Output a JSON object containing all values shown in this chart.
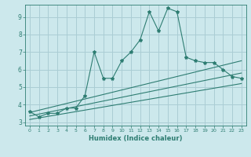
{
  "title": "",
  "xlabel": "Humidex (Indice chaleur)",
  "ylabel": "",
  "bg_color": "#cce8ec",
  "grid_color": "#aacdd4",
  "line_color": "#2e7d72",
  "xlim": [
    -0.5,
    23.5
  ],
  "ylim": [
    2.8,
    9.7
  ],
  "yticks": [
    3,
    4,
    5,
    6,
    7,
    8,
    9
  ],
  "xticks": [
    0,
    1,
    2,
    3,
    4,
    5,
    6,
    7,
    8,
    9,
    10,
    11,
    12,
    13,
    14,
    15,
    16,
    17,
    18,
    19,
    20,
    21,
    22,
    23
  ],
  "series1_x": [
    0,
    1,
    2,
    3,
    4,
    5,
    6,
    7,
    8,
    9,
    10,
    11,
    12,
    13,
    14,
    15,
    16,
    17,
    18,
    19,
    20,
    21,
    22,
    23
  ],
  "series1_y": [
    3.6,
    3.3,
    3.5,
    3.5,
    3.8,
    3.8,
    4.5,
    7.0,
    5.5,
    5.5,
    6.5,
    7.0,
    7.7,
    9.3,
    8.2,
    9.5,
    9.3,
    6.7,
    6.5,
    6.4,
    6.4,
    6.0,
    5.6,
    5.5
  ],
  "series2_x": [
    0,
    23
  ],
  "series2_y": [
    3.55,
    6.5
  ],
  "series3_x": [
    0,
    23
  ],
  "series3_y": [
    3.35,
    5.8
  ],
  "series4_x": [
    0,
    23
  ],
  "series4_y": [
    3.15,
    5.2
  ]
}
